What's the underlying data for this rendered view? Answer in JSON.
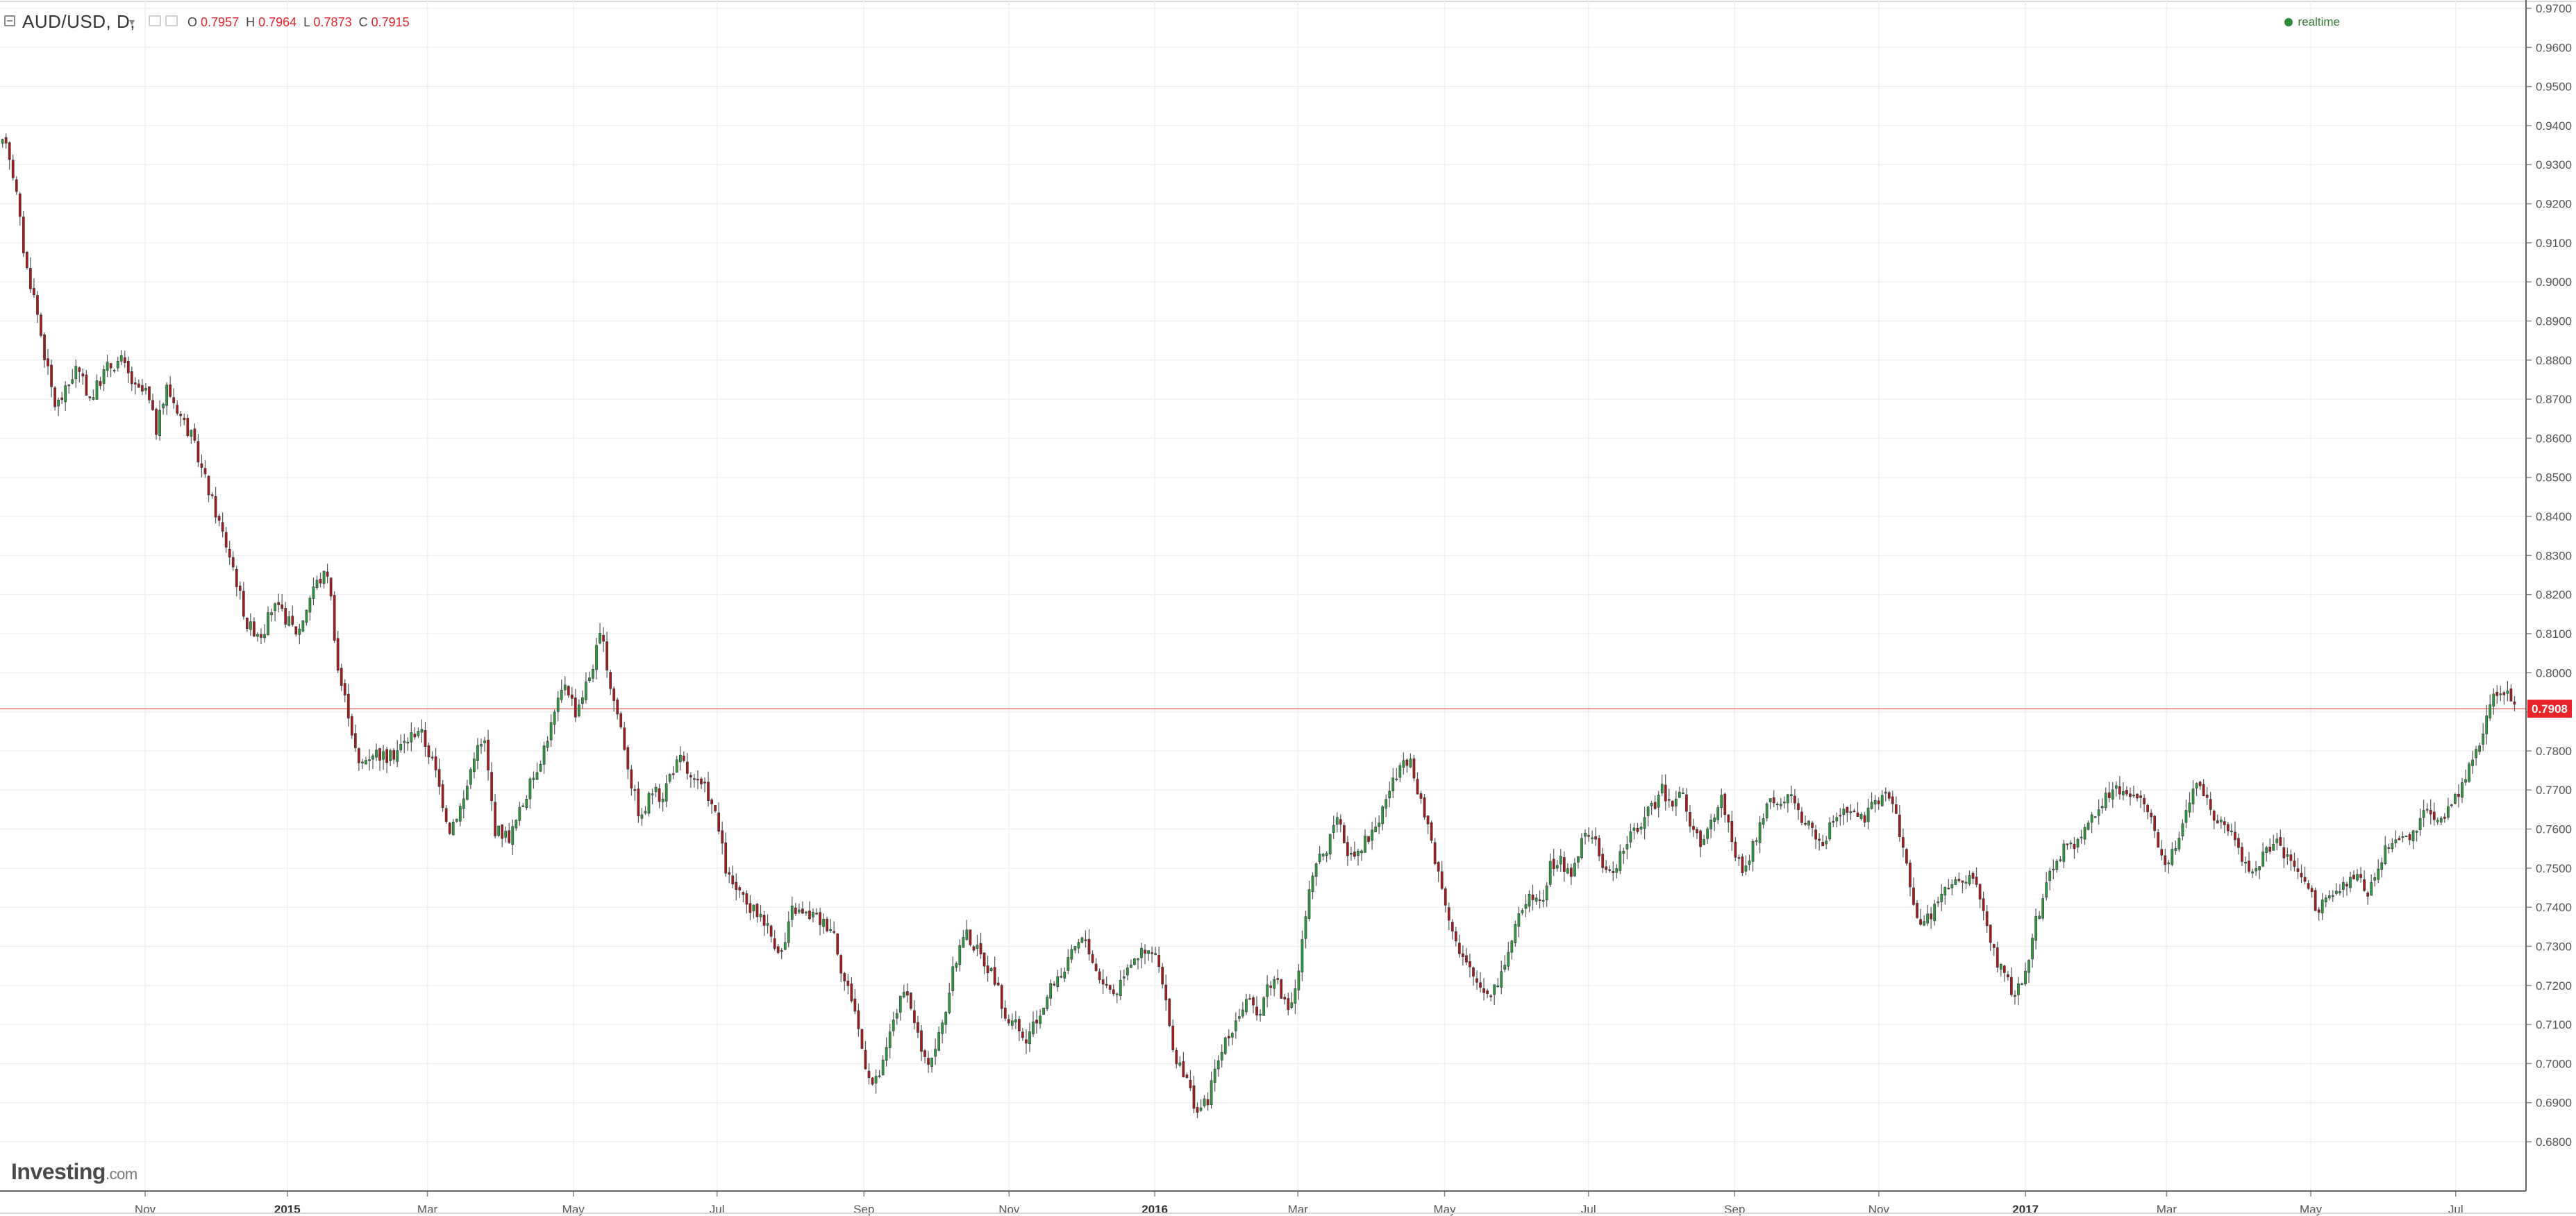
{
  "header": {
    "symbol": "AUD/USD, D,",
    "ohlc": [
      {
        "label": "O",
        "value": "0.7957"
      },
      {
        "label": "H",
        "value": "0.7964"
      },
      {
        "label": "L",
        "value": "0.7873"
      },
      {
        "label": "C",
        "value": "0.7915"
      }
    ],
    "realtime_label": "realtime"
  },
  "logo": {
    "main": "Investing",
    "sub": ".com"
  },
  "colors": {
    "up": "#2e9b3e",
    "down": "#a61c1c",
    "wick": "#555555",
    "grid": "#f0f0f0",
    "price_line": "#f08080",
    "price_tag": "#e8232a"
  },
  "chart_data": {
    "type": "candlestick",
    "series_name": "AUD/USD",
    "interval": "D",
    "last_price": "0.7908",
    "ylim": [
      0.678,
      0.97
    ],
    "y_ticks": [
      "0.9700",
      "0.9600",
      "0.9500",
      "0.9400",
      "0.9300",
      "0.9200",
      "0.9100",
      "0.9000",
      "0.8900",
      "0.8800",
      "0.8700",
      "0.8600",
      "0.8500",
      "0.8400",
      "0.8300",
      "0.8200",
      "0.8100",
      "0.8000",
      "0.7900",
      "0.7800",
      "0.7700",
      "0.7600",
      "0.7500",
      "0.7400",
      "0.7300",
      "0.7200",
      "0.7100",
      "0.7000",
      "0.6900",
      "0.6800"
    ],
    "x_ticks": [
      {
        "label": "Nov",
        "pos": 0.0575,
        "bold": false
      },
      {
        "label": "2015",
        "pos": 0.1138,
        "bold": true
      },
      {
        "label": "Mar",
        "pos": 0.1693,
        "bold": false
      },
      {
        "label": "May",
        "pos": 0.2271,
        "bold": false
      },
      {
        "label": "Jul",
        "pos": 0.284,
        "bold": false
      },
      {
        "label": "Sep",
        "pos": 0.3422,
        "bold": false
      },
      {
        "label": "Nov",
        "pos": 0.3997,
        "bold": false
      },
      {
        "label": "2016",
        "pos": 0.4574,
        "bold": true
      },
      {
        "label": "Mar",
        "pos": 0.5141,
        "bold": false
      },
      {
        "label": "May",
        "pos": 0.5722,
        "bold": false
      },
      {
        "label": "Jul",
        "pos": 0.6292,
        "bold": false
      },
      {
        "label": "Sep",
        "pos": 0.6871,
        "bold": false
      },
      {
        "label": "Nov",
        "pos": 0.7442,
        "bold": false
      },
      {
        "label": "2017",
        "pos": 0.8023,
        "bold": true
      },
      {
        "label": "Mar",
        "pos": 0.8582,
        "bold": false
      },
      {
        "label": "May",
        "pos": 0.9153,
        "bold": false
      },
      {
        "label": "Jul",
        "pos": 0.9727,
        "bold": false
      }
    ],
    "anchors": [
      [
        0.0,
        0.932
      ],
      [
        0.002,
        0.938
      ],
      [
        0.006,
        0.925
      ],
      [
        0.01,
        0.905
      ],
      [
        0.014,
        0.895
      ],
      [
        0.018,
        0.88
      ],
      [
        0.022,
        0.868
      ],
      [
        0.026,
        0.872
      ],
      [
        0.03,
        0.878
      ],
      [
        0.036,
        0.87
      ],
      [
        0.042,
        0.878
      ],
      [
        0.048,
        0.88
      ],
      [
        0.054,
        0.872
      ],
      [
        0.058,
        0.872
      ],
      [
        0.062,
        0.862
      ],
      [
        0.066,
        0.873
      ],
      [
        0.07,
        0.868
      ],
      [
        0.076,
        0.86
      ],
      [
        0.08,
        0.852
      ],
      [
        0.086,
        0.84
      ],
      [
        0.092,
        0.828
      ],
      [
        0.098,
        0.812
      ],
      [
        0.104,
        0.81
      ],
      [
        0.108,
        0.817
      ],
      [
        0.112,
        0.815
      ],
      [
        0.118,
        0.81
      ],
      [
        0.124,
        0.822
      ],
      [
        0.13,
        0.826
      ],
      [
        0.134,
        0.8
      ],
      [
        0.138,
        0.79
      ],
      [
        0.142,
        0.776
      ],
      [
        0.148,
        0.78
      ],
      [
        0.154,
        0.778
      ],
      [
        0.16,
        0.782
      ],
      [
        0.166,
        0.786
      ],
      [
        0.172,
        0.776
      ],
      [
        0.178,
        0.76
      ],
      [
        0.184,
        0.768
      ],
      [
        0.188,
        0.78
      ],
      [
        0.192,
        0.782
      ],
      [
        0.196,
        0.76
      ],
      [
        0.202,
        0.758
      ],
      [
        0.208,
        0.768
      ],
      [
        0.214,
        0.778
      ],
      [
        0.22,
        0.79
      ],
      [
        0.224,
        0.798
      ],
      [
        0.228,
        0.79
      ],
      [
        0.234,
        0.8
      ],
      [
        0.238,
        0.81
      ],
      [
        0.242,
        0.796
      ],
      [
        0.246,
        0.786
      ],
      [
        0.25,
        0.772
      ],
      [
        0.254,
        0.762
      ],
      [
        0.258,
        0.77
      ],
      [
        0.262,
        0.768
      ],
      [
        0.266,
        0.775
      ],
      [
        0.27,
        0.778
      ],
      [
        0.274,
        0.772
      ],
      [
        0.28,
        0.77
      ],
      [
        0.284,
        0.762
      ],
      [
        0.288,
        0.748
      ],
      [
        0.292,
        0.744
      ],
      [
        0.296,
        0.74
      ],
      [
        0.302,
        0.738
      ],
      [
        0.306,
        0.732
      ],
      [
        0.31,
        0.728
      ],
      [
        0.314,
        0.74
      ],
      [
        0.318,
        0.738
      ],
      [
        0.322,
        0.738
      ],
      [
        0.326,
        0.736
      ],
      [
        0.33,
        0.735
      ],
      [
        0.334,
        0.722
      ],
      [
        0.338,
        0.716
      ],
      [
        0.342,
        0.702
      ],
      [
        0.346,
        0.694
      ],
      [
        0.35,
        0.7
      ],
      [
        0.354,
        0.712
      ],
      [
        0.358,
        0.718
      ],
      [
        0.362,
        0.712
      ],
      [
        0.366,
        0.7
      ],
      [
        0.37,
        0.703
      ],
      [
        0.374,
        0.712
      ],
      [
        0.378,
        0.725
      ],
      [
        0.382,
        0.734
      ],
      [
        0.386,
        0.73
      ],
      [
        0.39,
        0.726
      ],
      [
        0.394,
        0.722
      ],
      [
        0.398,
        0.712
      ],
      [
        0.402,
        0.71
      ],
      [
        0.406,
        0.705
      ],
      [
        0.41,
        0.71
      ],
      [
        0.414,
        0.716
      ],
      [
        0.418,
        0.722
      ],
      [
        0.422,
        0.724
      ],
      [
        0.426,
        0.73
      ],
      [
        0.43,
        0.732
      ],
      [
        0.434,
        0.724
      ],
      [
        0.438,
        0.72
      ],
      [
        0.442,
        0.718
      ],
      [
        0.446,
        0.725
      ],
      [
        0.45,
        0.728
      ],
      [
        0.454,
        0.728
      ],
      [
        0.458,
        0.728
      ],
      [
        0.462,
        0.714
      ],
      [
        0.466,
        0.7
      ],
      [
        0.47,
        0.696
      ],
      [
        0.474,
        0.688
      ],
      [
        0.478,
        0.69
      ],
      [
        0.482,
        0.7
      ],
      [
        0.486,
        0.706
      ],
      [
        0.49,
        0.712
      ],
      [
        0.494,
        0.716
      ],
      [
        0.498,
        0.712
      ],
      [
        0.502,
        0.72
      ],
      [
        0.506,
        0.722
      ],
      [
        0.51,
        0.712
      ],
      [
        0.514,
        0.722
      ],
      [
        0.518,
        0.742
      ],
      [
        0.522,
        0.752
      ],
      [
        0.526,
        0.756
      ],
      [
        0.53,
        0.762
      ],
      [
        0.534,
        0.754
      ],
      [
        0.538,
        0.755
      ],
      [
        0.542,
        0.758
      ],
      [
        0.546,
        0.762
      ],
      [
        0.55,
        0.77
      ],
      [
        0.554,
        0.774
      ],
      [
        0.558,
        0.778
      ],
      [
        0.562,
        0.768
      ],
      [
        0.566,
        0.76
      ],
      [
        0.57,
        0.748
      ],
      [
        0.574,
        0.738
      ],
      [
        0.578,
        0.728
      ],
      [
        0.582,
        0.724
      ],
      [
        0.586,
        0.72
      ],
      [
        0.59,
        0.718
      ],
      [
        0.594,
        0.722
      ],
      [
        0.598,
        0.73
      ],
      [
        0.602,
        0.738
      ],
      [
        0.606,
        0.745
      ],
      [
        0.61,
        0.74
      ],
      [
        0.614,
        0.75
      ],
      [
        0.618,
        0.752
      ],
      [
        0.622,
        0.748
      ],
      [
        0.626,
        0.756
      ],
      [
        0.63,
        0.76
      ],
      [
        0.634,
        0.752
      ],
      [
        0.638,
        0.748
      ],
      [
        0.642,
        0.754
      ],
      [
        0.646,
        0.758
      ],
      [
        0.65,
        0.762
      ],
      [
        0.654,
        0.765
      ],
      [
        0.658,
        0.77
      ],
      [
        0.662,
        0.767
      ],
      [
        0.666,
        0.77
      ],
      [
        0.67,
        0.76
      ],
      [
        0.674,
        0.755
      ],
      [
        0.678,
        0.762
      ],
      [
        0.682,
        0.768
      ],
      [
        0.686,
        0.758
      ],
      [
        0.69,
        0.748
      ],
      [
        0.694,
        0.755
      ],
      [
        0.698,
        0.762
      ],
      [
        0.702,
        0.768
      ],
      [
        0.706,
        0.766
      ],
      [
        0.71,
        0.768
      ],
      [
        0.714,
        0.762
      ],
      [
        0.718,
        0.76
      ],
      [
        0.722,
        0.756
      ],
      [
        0.726,
        0.762
      ],
      [
        0.73,
        0.766
      ],
      [
        0.734,
        0.764
      ],
      [
        0.738,
        0.762
      ],
      [
        0.742,
        0.766
      ],
      [
        0.746,
        0.77
      ],
      [
        0.75,
        0.766
      ],
      [
        0.754,
        0.755
      ],
      [
        0.758,
        0.74
      ],
      [
        0.762,
        0.735
      ],
      [
        0.766,
        0.74
      ],
      [
        0.77,
        0.744
      ],
      [
        0.774,
        0.746
      ],
      [
        0.778,
        0.746
      ],
      [
        0.782,
        0.748
      ],
      [
        0.786,
        0.738
      ],
      [
        0.79,
        0.728
      ],
      [
        0.794,
        0.722
      ],
      [
        0.798,
        0.718
      ],
      [
        0.802,
        0.722
      ],
      [
        0.806,
        0.735
      ],
      [
        0.81,
        0.745
      ],
      [
        0.814,
        0.752
      ],
      [
        0.818,
        0.755
      ],
      [
        0.822,
        0.756
      ],
      [
        0.826,
        0.76
      ],
      [
        0.83,
        0.765
      ],
      [
        0.834,
        0.768
      ],
      [
        0.838,
        0.77
      ],
      [
        0.842,
        0.768
      ],
      [
        0.846,
        0.77
      ],
      [
        0.85,
        0.765
      ],
      [
        0.854,
        0.758
      ],
      [
        0.858,
        0.752
      ],
      [
        0.862,
        0.756
      ],
      [
        0.866,
        0.766
      ],
      [
        0.87,
        0.772
      ],
      [
        0.874,
        0.768
      ],
      [
        0.878,
        0.762
      ],
      [
        0.882,
        0.76
      ],
      [
        0.886,
        0.756
      ],
      [
        0.89,
        0.75
      ],
      [
        0.894,
        0.75
      ],
      [
        0.898,
        0.755
      ],
      [
        0.902,
        0.756
      ],
      [
        0.906,
        0.752
      ],
      [
        0.91,
        0.75
      ],
      [
        0.914,
        0.744
      ],
      [
        0.918,
        0.74
      ],
      [
        0.922,
        0.742
      ],
      [
        0.926,
        0.744
      ],
      [
        0.93,
        0.746
      ],
      [
        0.934,
        0.748
      ],
      [
        0.938,
        0.744
      ],
      [
        0.942,
        0.75
      ],
      [
        0.946,
        0.756
      ],
      [
        0.95,
        0.758
      ],
      [
        0.954,
        0.758
      ],
      [
        0.958,
        0.762
      ],
      [
        0.962,
        0.766
      ],
      [
        0.966,
        0.762
      ],
      [
        0.97,
        0.765
      ],
      [
        0.974,
        0.77
      ],
      [
        0.978,
        0.775
      ],
      [
        0.982,
        0.782
      ],
      [
        0.986,
        0.792
      ],
      [
        0.99,
        0.796
      ],
      [
        0.994,
        0.794
      ],
      [
        0.998,
        0.791
      ]
    ]
  }
}
